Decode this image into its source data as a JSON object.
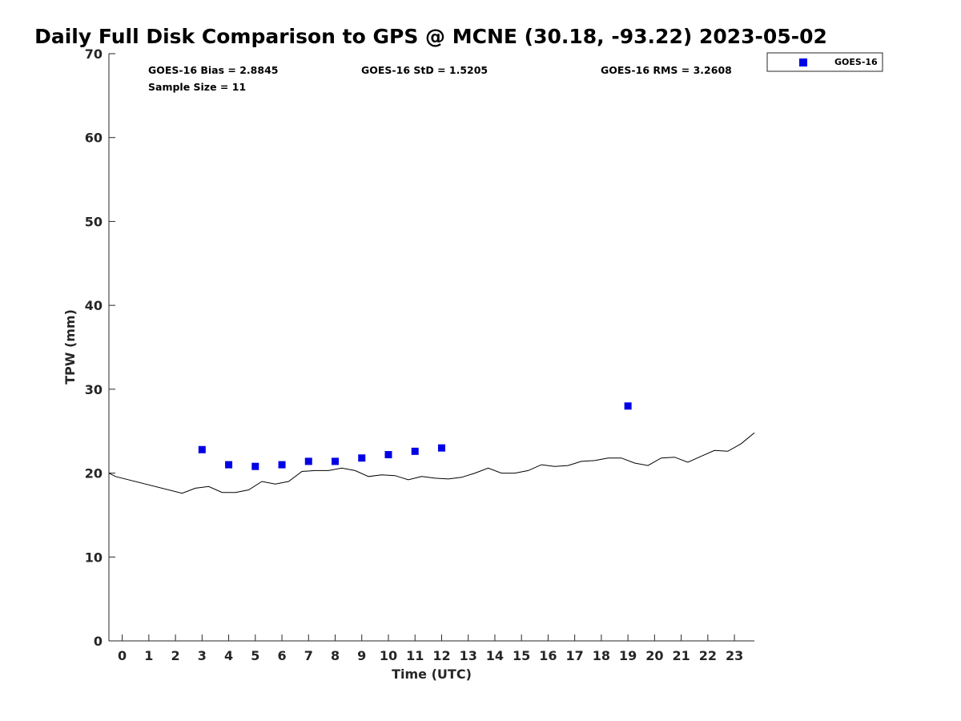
{
  "chart_data": {
    "type": "scatter",
    "title": "Daily Full Disk Comparison to GPS @ MCNE (30.18, -93.22) 2023-05-02",
    "xlabel": "Time (UTC)",
    "ylabel": "TPW (mm)",
    "xlim": [
      -0.5,
      23.75
    ],
    "ylim": [
      0,
      70
    ],
    "x_ticks": [
      "0",
      "1",
      "2",
      "3",
      "4",
      "5",
      "6",
      "7",
      "8",
      "9",
      "10",
      "11",
      "12",
      "13",
      "14",
      "15",
      "16",
      "17",
      "18",
      "19",
      "20",
      "21",
      "22",
      "23"
    ],
    "y_ticks": [
      "0",
      "10",
      "20",
      "30",
      "40",
      "50",
      "60",
      "70"
    ],
    "grid": false,
    "legend_position": "top-right outside",
    "stats": {
      "bias": "GOES-16 Bias = 2.8845",
      "std": "GOES-16 StD = 1.5205",
      "rms": "GOES-16 RMS = 3.2608",
      "sample": "Sample Size = 11"
    },
    "series": [
      {
        "name": "GOES-16",
        "type": "scatter",
        "color": "#0000e6",
        "marker": "square",
        "x": [
          3,
          4,
          5,
          6,
          7,
          8,
          9,
          10,
          11,
          12,
          19
        ],
        "y": [
          22.8,
          21.0,
          20.8,
          21.0,
          21.4,
          21.4,
          21.8,
          22.2,
          22.6,
          23.0,
          28.0
        ]
      },
      {
        "type": "line",
        "color": "#000000",
        "x": [
          -0.5,
          -0.25,
          2.25,
          2.75,
          3.25,
          3.75,
          4.25,
          4.75,
          5.25,
          5.75,
          6.25,
          6.75,
          7.25,
          7.75,
          8.25,
          8.75,
          9.25,
          9.75,
          10.25,
          10.75,
          11.25,
          11.75,
          12.25,
          12.75,
          13.25,
          13.75,
          14.25,
          14.75,
          15.25,
          15.75,
          16.25,
          16.75,
          17.25,
          17.75,
          18.25,
          18.75,
          19.25,
          19.75,
          20.25,
          20.75,
          21.25,
          21.75,
          22.25,
          22.75,
          23.25,
          23.75
        ],
        "y": [
          20.0,
          19.6,
          17.6,
          18.2,
          18.4,
          17.7,
          17.7,
          18.0,
          19.0,
          18.7,
          19.0,
          20.2,
          20.3,
          20.3,
          20.6,
          20.3,
          19.6,
          19.8,
          19.7,
          19.2,
          19.6,
          19.4,
          19.3,
          19.5,
          20.0,
          20.6,
          20.0,
          20.0,
          20.3,
          21.0,
          20.8,
          20.9,
          21.4,
          21.5,
          21.8,
          21.8,
          21.2,
          20.9,
          21.8,
          21.9,
          21.3,
          22.0,
          22.7,
          22.6,
          23.5,
          24.8
        ]
      }
    ]
  }
}
